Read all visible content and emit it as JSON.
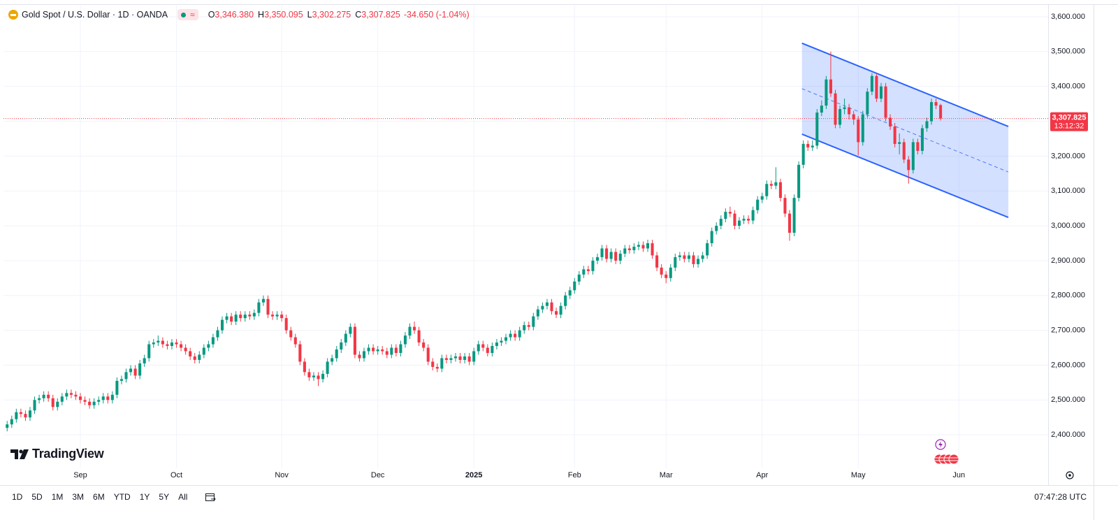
{
  "header": {
    "title": "Gold Spot / U.S. Dollar · 1D · OANDA",
    "badge": "≈",
    "ohlc": [
      {
        "key": "O",
        "value": "3,346.380"
      },
      {
        "key": "H",
        "value": "3,350.095"
      },
      {
        "key": "L",
        "value": "3,302.275"
      },
      {
        "key": "C",
        "value": "3,307.825"
      }
    ],
    "change": "-34.650 (-1.04%)"
  },
  "logo": "TradingView",
  "toolbar": {
    "ranges": [
      "1D",
      "5D",
      "1M",
      "3M",
      "6M",
      "YTD",
      "1Y",
      "5Y",
      "All"
    ],
    "clock": "07:47:28 UTC"
  },
  "chart_data": {
    "type": "candlestick",
    "up_color": "#089981",
    "down_color": "#f23645",
    "grid": true,
    "xlim": [
      -0.8,
      227.5
    ],
    "ylim": [
      2304,
      3632
    ],
    "xticks": [
      {
        "value": 16,
        "label": "Sep"
      },
      {
        "value": 37,
        "label": "Oct"
      },
      {
        "value": 60,
        "label": "Nov"
      },
      {
        "value": 81,
        "label": "Dec"
      },
      {
        "value": 102,
        "label": "2025"
      },
      {
        "value": 124,
        "label": "Feb"
      },
      {
        "value": 144,
        "label": "Mar"
      },
      {
        "value": 165,
        "label": "Apr"
      },
      {
        "value": 186,
        "label": "May"
      },
      {
        "value": 208,
        "label": "Jun"
      }
    ],
    "yticks": [
      {
        "value": 2400,
        "label": "2,400.000"
      },
      {
        "value": 2500,
        "label": "2,500.000"
      },
      {
        "value": 2600,
        "label": "2,600.000"
      },
      {
        "value": 2700,
        "label": "2,700.000"
      },
      {
        "value": 2800,
        "label": "2,800.000"
      },
      {
        "value": 2900,
        "label": "2,900.000"
      },
      {
        "value": 3000,
        "label": "3,000.000"
      },
      {
        "value": 3100,
        "label": "3,100.000"
      },
      {
        "value": 3200,
        "label": "3,200.000"
      },
      {
        "value": 3300,
        "label": "3,300.000"
      },
      {
        "value": 3400,
        "label": "3,400.000"
      },
      {
        "value": 3500,
        "label": "3,500.000"
      },
      {
        "value": 3600,
        "label": "3,600.000"
      }
    ],
    "last_price": {
      "value": 3307.825,
      "label": "3,307.825",
      "countdown": "13:12:32",
      "color": "#f23645"
    },
    "channel": {
      "color": "#2962ff",
      "x": [
        173.7,
        218.8
      ],
      "upper": [
        3524,
        3285
      ],
      "lower": [
        3263,
        3024
      ]
    },
    "ohlc": [
      [
        2420,
        2440,
        2410,
        2430
      ],
      [
        2430,
        2455,
        2420,
        2445
      ],
      [
        2445,
        2475,
        2435,
        2465
      ],
      [
        2465,
        2475,
        2450,
        2460
      ],
      [
        2460,
        2470,
        2440,
        2450
      ],
      [
        2450,
        2480,
        2440,
        2470
      ],
      [
        2470,
        2510,
        2460,
        2500
      ],
      [
        2500,
        2515,
        2490,
        2505
      ],
      [
        2505,
        2525,
        2495,
        2515
      ],
      [
        2515,
        2525,
        2495,
        2505
      ],
      [
        2505,
        2515,
        2470,
        2480
      ],
      [
        2480,
        2505,
        2470,
        2495
      ],
      [
        2495,
        2520,
        2485,
        2510
      ],
      [
        2510,
        2530,
        2500,
        2520
      ],
      [
        2520,
        2530,
        2505,
        2515
      ],
      [
        2515,
        2525,
        2500,
        2510
      ],
      [
        2510,
        2520,
        2490,
        2500
      ],
      [
        2500,
        2510,
        2485,
        2495
      ],
      [
        2495,
        2505,
        2475,
        2485
      ],
      [
        2485,
        2505,
        2475,
        2495
      ],
      [
        2495,
        2510,
        2485,
        2500
      ],
      [
        2500,
        2520,
        2490,
        2510
      ],
      [
        2510,
        2520,
        2490,
        2500
      ],
      [
        2500,
        2525,
        2490,
        2515
      ],
      [
        2515,
        2565,
        2505,
        2555
      ],
      [
        2555,
        2570,
        2545,
        2560
      ],
      [
        2560,
        2590,
        2550,
        2580
      ],
      [
        2580,
        2600,
        2570,
        2590
      ],
      [
        2590,
        2600,
        2560,
        2570
      ],
      [
        2570,
        2615,
        2560,
        2605
      ],
      [
        2605,
        2630,
        2595,
        2620
      ],
      [
        2620,
        2670,
        2610,
        2660
      ],
      [
        2660,
        2675,
        2650,
        2665
      ],
      [
        2665,
        2685,
        2655,
        2670
      ],
      [
        2670,
        2680,
        2650,
        2660
      ],
      [
        2660,
        2670,
        2645,
        2655
      ],
      [
        2655,
        2675,
        2645,
        2665
      ],
      [
        2665,
        2675,
        2650,
        2660
      ],
      [
        2660,
        2670,
        2640,
        2650
      ],
      [
        2650,
        2660,
        2630,
        2640
      ],
      [
        2640,
        2650,
        2615,
        2625
      ],
      [
        2625,
        2635,
        2605,
        2615
      ],
      [
        2615,
        2640,
        2605,
        2630
      ],
      [
        2630,
        2660,
        2620,
        2650
      ],
      [
        2650,
        2670,
        2640,
        2660
      ],
      [
        2660,
        2690,
        2650,
        2680
      ],
      [
        2680,
        2710,
        2670,
        2700
      ],
      [
        2700,
        2740,
        2690,
        2730
      ],
      [
        2730,
        2750,
        2720,
        2740
      ],
      [
        2740,
        2750,
        2715,
        2725
      ],
      [
        2725,
        2755,
        2715,
        2745
      ],
      [
        2745,
        2755,
        2725,
        2735
      ],
      [
        2735,
        2755,
        2725,
        2745
      ],
      [
        2745,
        2755,
        2730,
        2740
      ],
      [
        2740,
        2760,
        2730,
        2750
      ],
      [
        2750,
        2790,
        2740,
        2780
      ],
      [
        2780,
        2800,
        2770,
        2790
      ],
      [
        2790,
        2800,
        2735,
        2745
      ],
      [
        2745,
        2755,
        2730,
        2740
      ],
      [
        2740,
        2755,
        2730,
        2745
      ],
      [
        2745,
        2755,
        2725,
        2735
      ],
      [
        2735,
        2745,
        2690,
        2700
      ],
      [
        2700,
        2710,
        2670,
        2680
      ],
      [
        2680,
        2690,
        2650,
        2660
      ],
      [
        2660,
        2670,
        2600,
        2610
      ],
      [
        2610,
        2620,
        2570,
        2580
      ],
      [
        2580,
        2590,
        2555,
        2565
      ],
      [
        2565,
        2580,
        2555,
        2570
      ],
      [
        2570,
        2580,
        2540,
        2560
      ],
      [
        2560,
        2585,
        2550,
        2575
      ],
      [
        2575,
        2620,
        2565,
        2610
      ],
      [
        2610,
        2630,
        2600,
        2620
      ],
      [
        2620,
        2655,
        2610,
        2645
      ],
      [
        2645,
        2675,
        2635,
        2665
      ],
      [
        2665,
        2700,
        2655,
        2690
      ],
      [
        2690,
        2720,
        2680,
        2710
      ],
      [
        2710,
        2720,
        2620,
        2630
      ],
      [
        2630,
        2640,
        2610,
        2620
      ],
      [
        2620,
        2650,
        2610,
        2640
      ],
      [
        2640,
        2660,
        2630,
        2650
      ],
      [
        2650,
        2660,
        2630,
        2640
      ],
      [
        2640,
        2655,
        2630,
        2645
      ],
      [
        2645,
        2655,
        2630,
        2640
      ],
      [
        2640,
        2650,
        2620,
        2630
      ],
      [
        2630,
        2660,
        2620,
        2650
      ],
      [
        2650,
        2660,
        2625,
        2635
      ],
      [
        2635,
        2670,
        2625,
        2660
      ],
      [
        2660,
        2695,
        2650,
        2685
      ],
      [
        2685,
        2720,
        2675,
        2710
      ],
      [
        2710,
        2725,
        2690,
        2700
      ],
      [
        2700,
        2710,
        2655,
        2665
      ],
      [
        2665,
        2675,
        2640,
        2650
      ],
      [
        2650,
        2660,
        2600,
        2610
      ],
      [
        2610,
        2620,
        2585,
        2595
      ],
      [
        2595,
        2605,
        2580,
        2590
      ],
      [
        2590,
        2630,
        2580,
        2620
      ],
      [
        2620,
        2630,
        2605,
        2615
      ],
      [
        2615,
        2630,
        2605,
        2620
      ],
      [
        2620,
        2635,
        2610,
        2625
      ],
      [
        2625,
        2635,
        2605,
        2615
      ],
      [
        2615,
        2635,
        2605,
        2625
      ],
      [
        2625,
        2635,
        2600,
        2610
      ],
      [
        2610,
        2650,
        2600,
        2640
      ],
      [
        2640,
        2670,
        2630,
        2660
      ],
      [
        2660,
        2670,
        2640,
        2650
      ],
      [
        2650,
        2660,
        2625,
        2635
      ],
      [
        2635,
        2665,
        2625,
        2655
      ],
      [
        2655,
        2675,
        2645,
        2665
      ],
      [
        2665,
        2680,
        2655,
        2670
      ],
      [
        2670,
        2690,
        2660,
        2680
      ],
      [
        2680,
        2700,
        2670,
        2690
      ],
      [
        2690,
        2700,
        2670,
        2680
      ],
      [
        2680,
        2710,
        2670,
        2700
      ],
      [
        2700,
        2725,
        2690,
        2715
      ],
      [
        2715,
        2725,
        2700,
        2710
      ],
      [
        2710,
        2750,
        2700,
        2740
      ],
      [
        2740,
        2770,
        2730,
        2760
      ],
      [
        2760,
        2780,
        2750,
        2770
      ],
      [
        2770,
        2790,
        2760,
        2780
      ],
      [
        2780,
        2790,
        2745,
        2755
      ],
      [
        2755,
        2765,
        2735,
        2745
      ],
      [
        2745,
        2780,
        2735,
        2770
      ],
      [
        2770,
        2810,
        2760,
        2800
      ],
      [
        2800,
        2825,
        2790,
        2815
      ],
      [
        2815,
        2850,
        2805,
        2840
      ],
      [
        2840,
        2870,
        2830,
        2860
      ],
      [
        2860,
        2885,
        2850,
        2875
      ],
      [
        2875,
        2885,
        2860,
        2870
      ],
      [
        2870,
        2910,
        2860,
        2900
      ],
      [
        2900,
        2920,
        2890,
        2910
      ],
      [
        2910,
        2945,
        2900,
        2935
      ],
      [
        2935,
        2945,
        2895,
        2905
      ],
      [
        2905,
        2935,
        2895,
        2925
      ],
      [
        2925,
        2935,
        2890,
        2900
      ],
      [
        2900,
        2930,
        2890,
        2920
      ],
      [
        2920,
        2945,
        2910,
        2935
      ],
      [
        2935,
        2945,
        2920,
        2930
      ],
      [
        2930,
        2950,
        2920,
        2940
      ],
      [
        2940,
        2955,
        2930,
        2945
      ],
      [
        2945,
        2955,
        2925,
        2935
      ],
      [
        2935,
        2960,
        2925,
        2950
      ],
      [
        2950,
        2960,
        2905,
        2915
      ],
      [
        2915,
        2925,
        2870,
        2880
      ],
      [
        2880,
        2890,
        2850,
        2860
      ],
      [
        2860,
        2870,
        2835,
        2850
      ],
      [
        2850,
        2890,
        2840,
        2880
      ],
      [
        2880,
        2920,
        2870,
        2910
      ],
      [
        2910,
        2925,
        2900,
        2915
      ],
      [
        2915,
        2925,
        2895,
        2905
      ],
      [
        2905,
        2925,
        2895,
        2915
      ],
      [
        2915,
        2925,
        2880,
        2890
      ],
      [
        2890,
        2915,
        2880,
        2905
      ],
      [
        2905,
        2925,
        2895,
        2915
      ],
      [
        2915,
        2960,
        2905,
        2950
      ],
      [
        2950,
        2995,
        2940,
        2985
      ],
      [
        2985,
        3010,
        2975,
        3000
      ],
      [
        3000,
        3030,
        2990,
        3020
      ],
      [
        3020,
        3050,
        3010,
        3040
      ],
      [
        3040,
        3055,
        3025,
        3035
      ],
      [
        3035,
        3045,
        2990,
        3000
      ],
      [
        3000,
        3025,
        2990,
        3015
      ],
      [
        3015,
        3030,
        3005,
        3020
      ],
      [
        3020,
        3030,
        3005,
        3015
      ],
      [
        3015,
        3055,
        3005,
        3045
      ],
      [
        3045,
        3085,
        3035,
        3075
      ],
      [
        3075,
        3095,
        3065,
        3085
      ],
      [
        3085,
        3130,
        3075,
        3120
      ],
      [
        3120,
        3130,
        3105,
        3115
      ],
      [
        3115,
        3168,
        3105,
        3125
      ],
      [
        3125,
        3135,
        3070,
        3080
      ],
      [
        3080,
        3090,
        3025,
        3035
      ],
      [
        3035,
        3045,
        2957,
        2980
      ],
      [
        2980,
        3090,
        2970,
        3080
      ],
      [
        3080,
        3185,
        3070,
        3175
      ],
      [
        3175,
        3245,
        3165,
        3235
      ],
      [
        3235,
        3245,
        3215,
        3225
      ],
      [
        3225,
        3245,
        3215,
        3230
      ],
      [
        3230,
        3335,
        3220,
        3325
      ],
      [
        3325,
        3360,
        3315,
        3345
      ],
      [
        3345,
        3430,
        3335,
        3420
      ],
      [
        3420,
        3500,
        3370,
        3380
      ],
      [
        3380,
        3390,
        3280,
        3290
      ],
      [
        3290,
        3345,
        3280,
        3335
      ],
      [
        3335,
        3365,
        3320,
        3340
      ],
      [
        3340,
        3350,
        3305,
        3320
      ],
      [
        3320,
        3330,
        3290,
        3305
      ],
      [
        3305,
        3315,
        3202,
        3240
      ],
      [
        3240,
        3330,
        3230,
        3320
      ],
      [
        3320,
        3395,
        3310,
        3385
      ],
      [
        3385,
        3438,
        3375,
        3430
      ],
      [
        3430,
        3435,
        3355,
        3365
      ],
      [
        3365,
        3410,
        3355,
        3400
      ],
      [
        3400,
        3410,
        3300,
        3310
      ],
      [
        3310,
        3320,
        3275,
        3285
      ],
      [
        3285,
        3295,
        3225,
        3235
      ],
      [
        3235,
        3265,
        3205,
        3240
      ],
      [
        3240,
        3250,
        3180,
        3190
      ],
      [
        3190,
        3200,
        3121,
        3160
      ],
      [
        3160,
        3250,
        3150,
        3240
      ],
      [
        3240,
        3250,
        3205,
        3215
      ],
      [
        3215,
        3290,
        3205,
        3280
      ],
      [
        3280,
        3310,
        3270,
        3300
      ],
      [
        3300,
        3365,
        3290,
        3355
      ],
      [
        3355,
        3365,
        3335,
        3345
      ],
      [
        3346.38,
        3350.095,
        3302.275,
        3307.825
      ]
    ]
  }
}
